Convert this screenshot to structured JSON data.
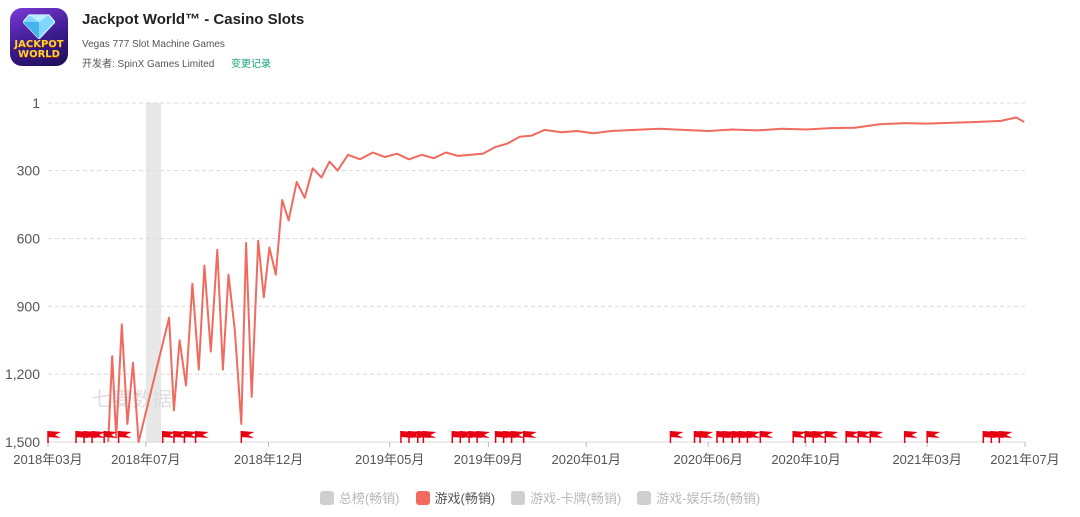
{
  "app": {
    "title": "Jackpot World™ - Casino Slots",
    "subtitle": "Vegas 777 Slot Machine Games",
    "developer_label": "开发者: SpinX Games Limited",
    "changelog_link": "变更记录",
    "icon_text_1": "JACKPOT",
    "icon_text_2": "WORLD",
    "icon_name": "jackpot-world-app-icon"
  },
  "watermark": "七麦数据",
  "colors": {
    "series": "#f06a5f",
    "flag": "#e60012",
    "grid": "#d9d9d9",
    "shade": "#e8e8e8"
  },
  "chart_data": {
    "type": "line",
    "y_axis": {
      "reversed": true,
      "min": 1,
      "max": 1500,
      "ticks": [
        "1",
        "300",
        "600",
        "900",
        "1,200",
        "1,500"
      ],
      "tick_values": [
        1,
        300,
        600,
        900,
        1200,
        1500
      ]
    },
    "x_axis": {
      "type": "date",
      "min": "2018-03-01",
      "max": "2021-07-01",
      "ticks": [
        "2018年03月",
        "2018年07月",
        "2018年12月",
        "2019年05月",
        "2019年09月",
        "2020年01月",
        "2020年06月",
        "2020年10月",
        "2021年03月",
        "2021年07月"
      ],
      "tick_dates": [
        "2018-03-01",
        "2018-07-01",
        "2018-12-01",
        "2019-05-01",
        "2019-09-01",
        "2020-01-01",
        "2020-06-01",
        "2020-10-01",
        "2021-03-01",
        "2021-07-01"
      ]
    },
    "grid": true,
    "legend_position": "bottom",
    "shaded_period": [
      "2018-07-01",
      "2018-07-20"
    ],
    "series": [
      {
        "name": "游戏(畅销)",
        "visible": true,
        "color": "#f06a5f",
        "points": [
          [
            "2018-05-15",
            1500
          ],
          [
            "2018-05-20",
            1120
          ],
          [
            "2018-05-25",
            1480
          ],
          [
            "2018-06-01",
            980
          ],
          [
            "2018-06-08",
            1420
          ],
          [
            "2018-06-15",
            1150
          ],
          [
            "2018-06-22",
            1500
          ],
          [
            "2018-07-30",
            950
          ],
          [
            "2018-08-05",
            1360
          ],
          [
            "2018-08-12",
            1050
          ],
          [
            "2018-08-20",
            1250
          ],
          [
            "2018-08-28",
            800
          ],
          [
            "2018-09-05",
            1180
          ],
          [
            "2018-09-12",
            720
          ],
          [
            "2018-09-20",
            1100
          ],
          [
            "2018-09-28",
            650
          ],
          [
            "2018-10-05",
            1180
          ],
          [
            "2018-10-12",
            760
          ],
          [
            "2018-10-20",
            1010
          ],
          [
            "2018-10-28",
            1420
          ],
          [
            "2018-11-03",
            620
          ],
          [
            "2018-11-10",
            1300
          ],
          [
            "2018-11-18",
            610
          ],
          [
            "2018-11-25",
            860
          ],
          [
            "2018-12-02",
            640
          ],
          [
            "2018-12-10",
            760
          ],
          [
            "2018-12-18",
            430
          ],
          [
            "2018-12-26",
            520
          ],
          [
            "2019-01-05",
            350
          ],
          [
            "2019-01-15",
            420
          ],
          [
            "2019-01-25",
            290
          ],
          [
            "2019-02-05",
            330
          ],
          [
            "2019-02-15",
            260
          ],
          [
            "2019-02-25",
            300
          ],
          [
            "2019-03-10",
            230
          ],
          [
            "2019-03-25",
            250
          ],
          [
            "2019-04-10",
            220
          ],
          [
            "2019-04-25",
            240
          ],
          [
            "2019-05-10",
            225
          ],
          [
            "2019-05-25",
            250
          ],
          [
            "2019-06-10",
            230
          ],
          [
            "2019-06-25",
            245
          ],
          [
            "2019-07-10",
            220
          ],
          [
            "2019-07-25",
            235
          ],
          [
            "2019-08-10",
            230
          ],
          [
            "2019-08-25",
            225
          ],
          [
            "2019-09-10",
            195
          ],
          [
            "2019-09-25",
            180
          ],
          [
            "2019-10-10",
            150
          ],
          [
            "2019-10-25",
            145
          ],
          [
            "2019-11-10",
            120
          ],
          [
            "2019-12-01",
            130
          ],
          [
            "2019-12-20",
            125
          ],
          [
            "2020-01-10",
            135
          ],
          [
            "2020-02-01",
            125
          ],
          [
            "2020-03-01",
            120
          ],
          [
            "2020-04-01",
            115
          ],
          [
            "2020-05-01",
            120
          ],
          [
            "2020-06-01",
            125
          ],
          [
            "2020-07-01",
            118
          ],
          [
            "2020-08-01",
            122
          ],
          [
            "2020-09-01",
            115
          ],
          [
            "2020-10-01",
            118
          ],
          [
            "2020-11-01",
            112
          ],
          [
            "2020-12-01",
            110
          ],
          [
            "2021-01-01",
            95
          ],
          [
            "2021-02-01",
            90
          ],
          [
            "2021-03-01",
            92
          ],
          [
            "2021-04-01",
            88
          ],
          [
            "2021-05-01",
            85
          ],
          [
            "2021-06-01",
            80
          ],
          [
            "2021-06-20",
            65
          ],
          [
            "2021-06-30",
            85
          ]
        ]
      },
      {
        "name": "总榜(畅销)",
        "visible": false
      },
      {
        "name": "游戏-卡牌(畅销)",
        "visible": false
      },
      {
        "name": "游戏-娱乐场(畅销)",
        "visible": false
      }
    ],
    "version_flags": [
      "2018-03-01",
      "2018-04-05",
      "2018-04-15",
      "2018-04-25",
      "2018-05-10",
      "2018-05-28",
      "2018-07-22",
      "2018-08-05",
      "2018-08-18",
      "2018-09-01",
      "2018-10-28",
      "2019-05-15",
      "2019-05-25",
      "2019-06-05",
      "2019-06-12",
      "2019-07-18",
      "2019-07-28",
      "2019-08-08",
      "2019-08-18",
      "2019-09-10",
      "2019-09-20",
      "2019-09-30",
      "2019-10-15",
      "2020-04-15",
      "2020-05-15",
      "2020-05-22",
      "2020-06-12",
      "2020-06-20",
      "2020-07-01",
      "2020-07-10",
      "2020-07-20",
      "2020-08-05",
      "2020-09-15",
      "2020-09-30",
      "2020-10-10",
      "2020-10-25",
      "2020-11-20",
      "2020-12-05",
      "2020-12-20",
      "2021-02-01",
      "2021-03-01",
      "2021-05-10",
      "2021-05-20",
      "2021-05-30"
    ],
    "legend": [
      "总榜(畅销)",
      "游戏(畅销)",
      "游戏-卡牌(畅销)",
      "游戏-娱乐场(畅销)"
    ]
  }
}
